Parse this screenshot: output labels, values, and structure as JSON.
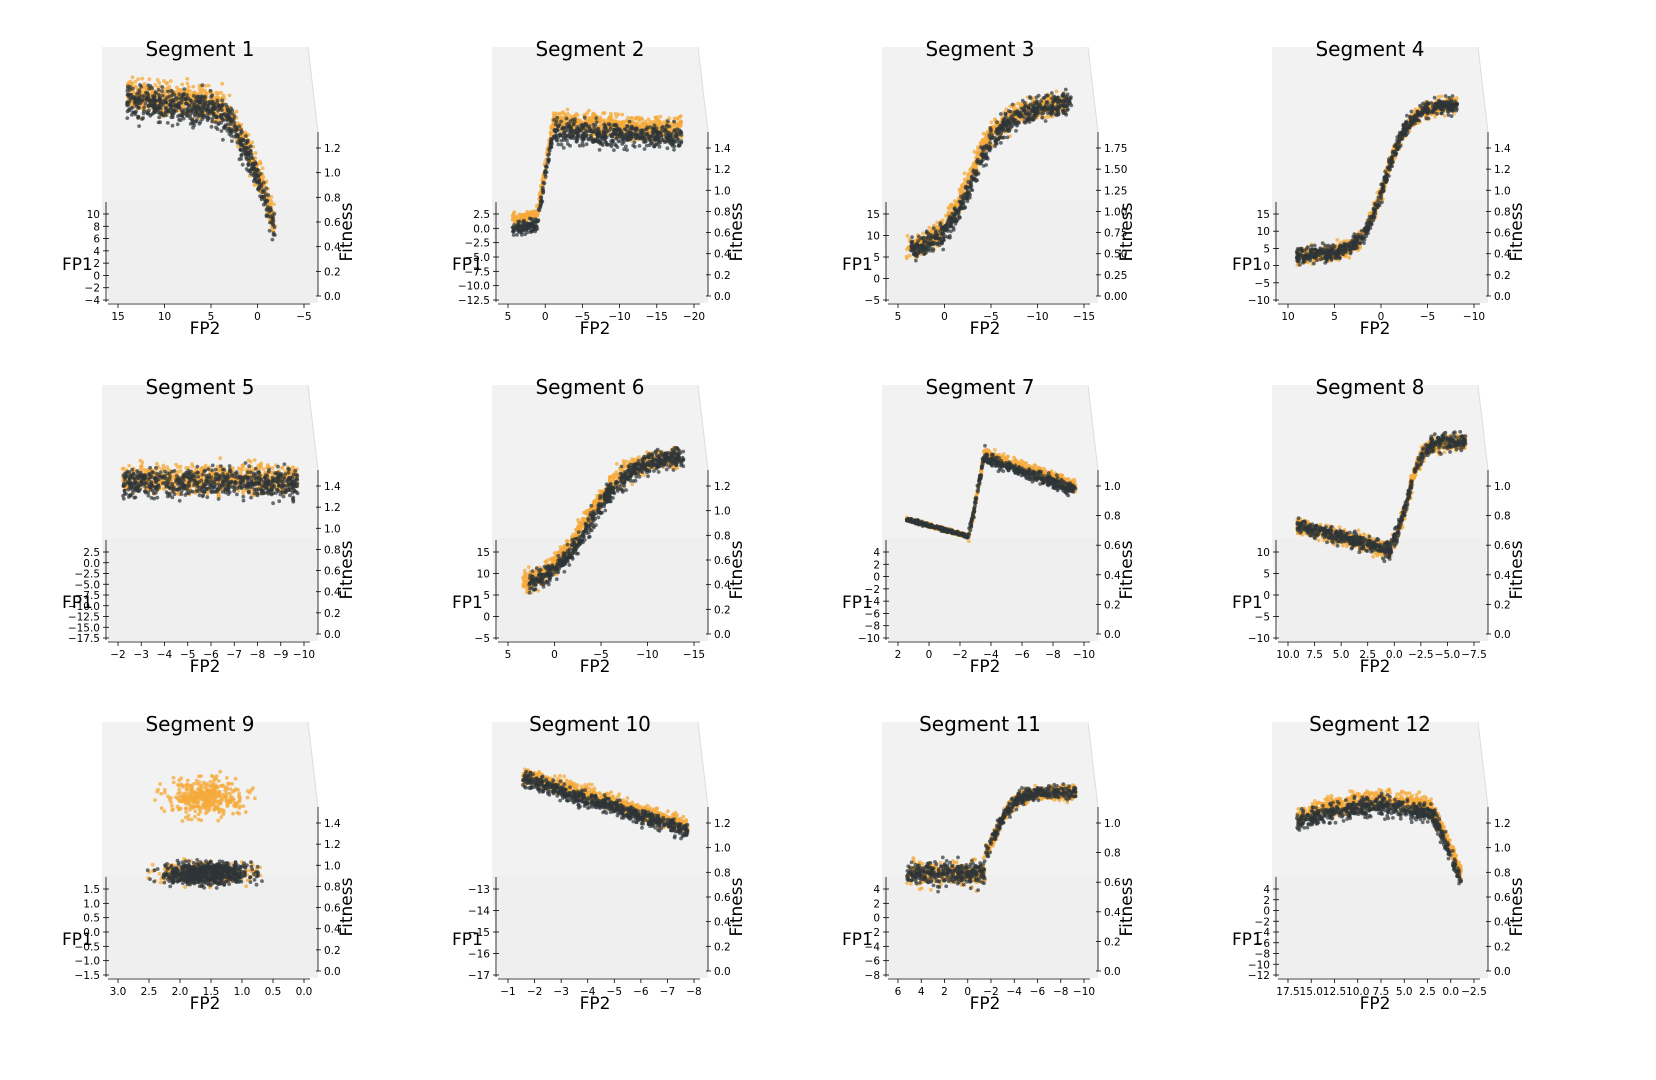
{
  "colors": {
    "orange": "#F5A93A",
    "dark": "#2E3538",
    "pane": "#F2F2F2",
    "pane_floor": "#EFEFEF"
  },
  "axis_labels": {
    "fp1": "FP1",
    "fp2": "FP2",
    "fitness": "Fitness"
  },
  "chart_data": [
    {
      "type": "scatter",
      "title": "Segment 1",
      "fitness_ticks": [
        "0.0",
        "0.2",
        "0.4",
        "0.6",
        "0.8",
        "1.0",
        "1.2"
      ],
      "fp1_ticks": [
        "−4",
        "−2",
        "0",
        "2",
        "4",
        "6",
        "8",
        "10"
      ],
      "fp2_ticks": [
        "15",
        "10",
        "5",
        "0",
        "−5"
      ],
      "series": [
        {
          "color": "orange"
        },
        {
          "color": "dark"
        }
      ]
    },
    {
      "type": "scatter",
      "title": "Segment 2",
      "fitness_ticks": [
        "0.0",
        "0.2",
        "0.4",
        "0.6",
        "0.8",
        "1.0",
        "1.2",
        "1.4"
      ],
      "fp1_ticks": [
        "−12.5",
        "−10.0",
        "−7.5",
        "−5.0",
        "−2.5",
        "0.0",
        "2.5"
      ],
      "fp2_ticks": [
        "5",
        "0",
        "−5",
        "−10",
        "−15",
        "−20"
      ],
      "series": [
        {
          "color": "orange"
        },
        {
          "color": "dark"
        }
      ]
    },
    {
      "type": "scatter",
      "title": "Segment 3",
      "fitness_ticks": [
        "0.00",
        "0.25",
        "0.50",
        "0.75",
        "1.00",
        "1.25",
        "1.50",
        "1.75"
      ],
      "fp1_ticks": [
        "−5",
        "0",
        "5",
        "10",
        "15"
      ],
      "fp2_ticks": [
        "5",
        "0",
        "−5",
        "−10",
        "−15"
      ],
      "series": [
        {
          "color": "orange"
        },
        {
          "color": "dark"
        }
      ]
    },
    {
      "type": "scatter",
      "title": "Segment 4",
      "fitness_ticks": [
        "0.0",
        "0.2",
        "0.4",
        "0.6",
        "0.8",
        "1.0",
        "1.2",
        "1.4"
      ],
      "fp1_ticks": [
        "−10",
        "−5",
        "0",
        "5",
        "10",
        "15"
      ],
      "fp2_ticks": [
        "10",
        "5",
        "0",
        "−5",
        "−10"
      ],
      "series": [
        {
          "color": "orange"
        },
        {
          "color": "dark"
        }
      ]
    },
    {
      "type": "scatter",
      "title": "Segment 5",
      "fitness_ticks": [
        "0.0",
        "0.2",
        "0.4",
        "0.6",
        "0.8",
        "1.0",
        "1.2",
        "1.4"
      ],
      "fp1_ticks": [
        "−17.5",
        "−15.0",
        "−12.5",
        "−10.0",
        "−7.5",
        "−5.0",
        "−2.5",
        "0.0",
        "2.5"
      ],
      "fp2_ticks": [
        "−2",
        "−3",
        "−4",
        "−5",
        "−6",
        "−7",
        "−8",
        "−9",
        "−10"
      ],
      "series": [
        {
          "color": "orange"
        },
        {
          "color": "dark"
        }
      ]
    },
    {
      "type": "scatter",
      "title": "Segment 6",
      "fitness_ticks": [
        "0.0",
        "0.2",
        "0.4",
        "0.6",
        "0.8",
        "1.0",
        "1.2"
      ],
      "fp1_ticks": [
        "−5",
        "0",
        "5",
        "10",
        "15"
      ],
      "fp2_ticks": [
        "5",
        "0",
        "−5",
        "−10",
        "−15"
      ],
      "series": [
        {
          "color": "orange"
        },
        {
          "color": "dark"
        }
      ]
    },
    {
      "type": "scatter",
      "title": "Segment 7",
      "fitness_ticks": [
        "0.0",
        "0.2",
        "0.4",
        "0.6",
        "0.8",
        "1.0"
      ],
      "fp1_ticks": [
        "−10",
        "−8",
        "−6",
        "−4",
        "−2",
        "0",
        "2",
        "4"
      ],
      "fp2_ticks": [
        "2",
        "0",
        "−2",
        "−4",
        "−6",
        "−8",
        "−10"
      ],
      "series": [
        {
          "color": "orange"
        },
        {
          "color": "dark"
        }
      ]
    },
    {
      "type": "scatter",
      "title": "Segment 8",
      "fitness_ticks": [
        "0.0",
        "0.2",
        "0.4",
        "0.6",
        "0.8",
        "1.0"
      ],
      "fp1_ticks": [
        "−10",
        "−5",
        "0",
        "5",
        "10"
      ],
      "fp2_ticks": [
        "10.0",
        "7.5",
        "5.0",
        "2.5",
        "0.0",
        "−2.5",
        "−5.0",
        "−7.5"
      ],
      "series": [
        {
          "color": "orange"
        },
        {
          "color": "dark"
        }
      ]
    },
    {
      "type": "scatter",
      "title": "Segment 9",
      "fitness_ticks": [
        "0.0",
        "0.2",
        "0.4",
        "0.6",
        "0.8",
        "1.0",
        "1.2",
        "1.4"
      ],
      "fp1_ticks": [
        "−1.5",
        "−1.0",
        "−0.5",
        "0.0",
        "0.5",
        "1.0",
        "1.5"
      ],
      "fp2_ticks": [
        "3.0",
        "2.5",
        "2.0",
        "1.5",
        "1.0",
        "0.5",
        "0.0"
      ],
      "series": [
        {
          "color": "orange"
        },
        {
          "color": "dark"
        }
      ]
    },
    {
      "type": "scatter",
      "title": "Segment 10",
      "fitness_ticks": [
        "0.0",
        "0.2",
        "0.4",
        "0.6",
        "0.8",
        "1.0",
        "1.2"
      ],
      "fp1_ticks": [
        "−17",
        "−16",
        "−15",
        "−14",
        "−13"
      ],
      "fp2_ticks": [
        "−1",
        "−2",
        "−3",
        "−4",
        "−5",
        "−6",
        "−7",
        "−8"
      ],
      "series": [
        {
          "color": "orange"
        },
        {
          "color": "dark"
        }
      ]
    },
    {
      "type": "scatter",
      "title": "Segment 11",
      "fitness_ticks": [
        "0.0",
        "0.2",
        "0.4",
        "0.6",
        "0.8",
        "1.0"
      ],
      "fp1_ticks": [
        "−8",
        "−6",
        "−4",
        "−2",
        "0",
        "2",
        "4"
      ],
      "fp2_ticks": [
        "6",
        "4",
        "2",
        "0",
        "−2",
        "−4",
        "−6",
        "−8",
        "−10"
      ],
      "series": [
        {
          "color": "orange"
        },
        {
          "color": "dark"
        }
      ]
    },
    {
      "type": "scatter",
      "title": "Segment 12",
      "fitness_ticks": [
        "0.0",
        "0.2",
        "0.4",
        "0.6",
        "0.8",
        "1.0",
        "1.2"
      ],
      "fp1_ticks": [
        "−12",
        "−10",
        "−8",
        "−6",
        "−4",
        "−2",
        "0",
        "2",
        "4"
      ],
      "fp2_ticks": [
        "17.5",
        "15.0",
        "12.5",
        "10.0",
        "7.5",
        "5.0",
        "2.5",
        "0.0",
        "−2.5"
      ],
      "series": [
        {
          "color": "orange"
        },
        {
          "color": "dark"
        }
      ]
    }
  ]
}
